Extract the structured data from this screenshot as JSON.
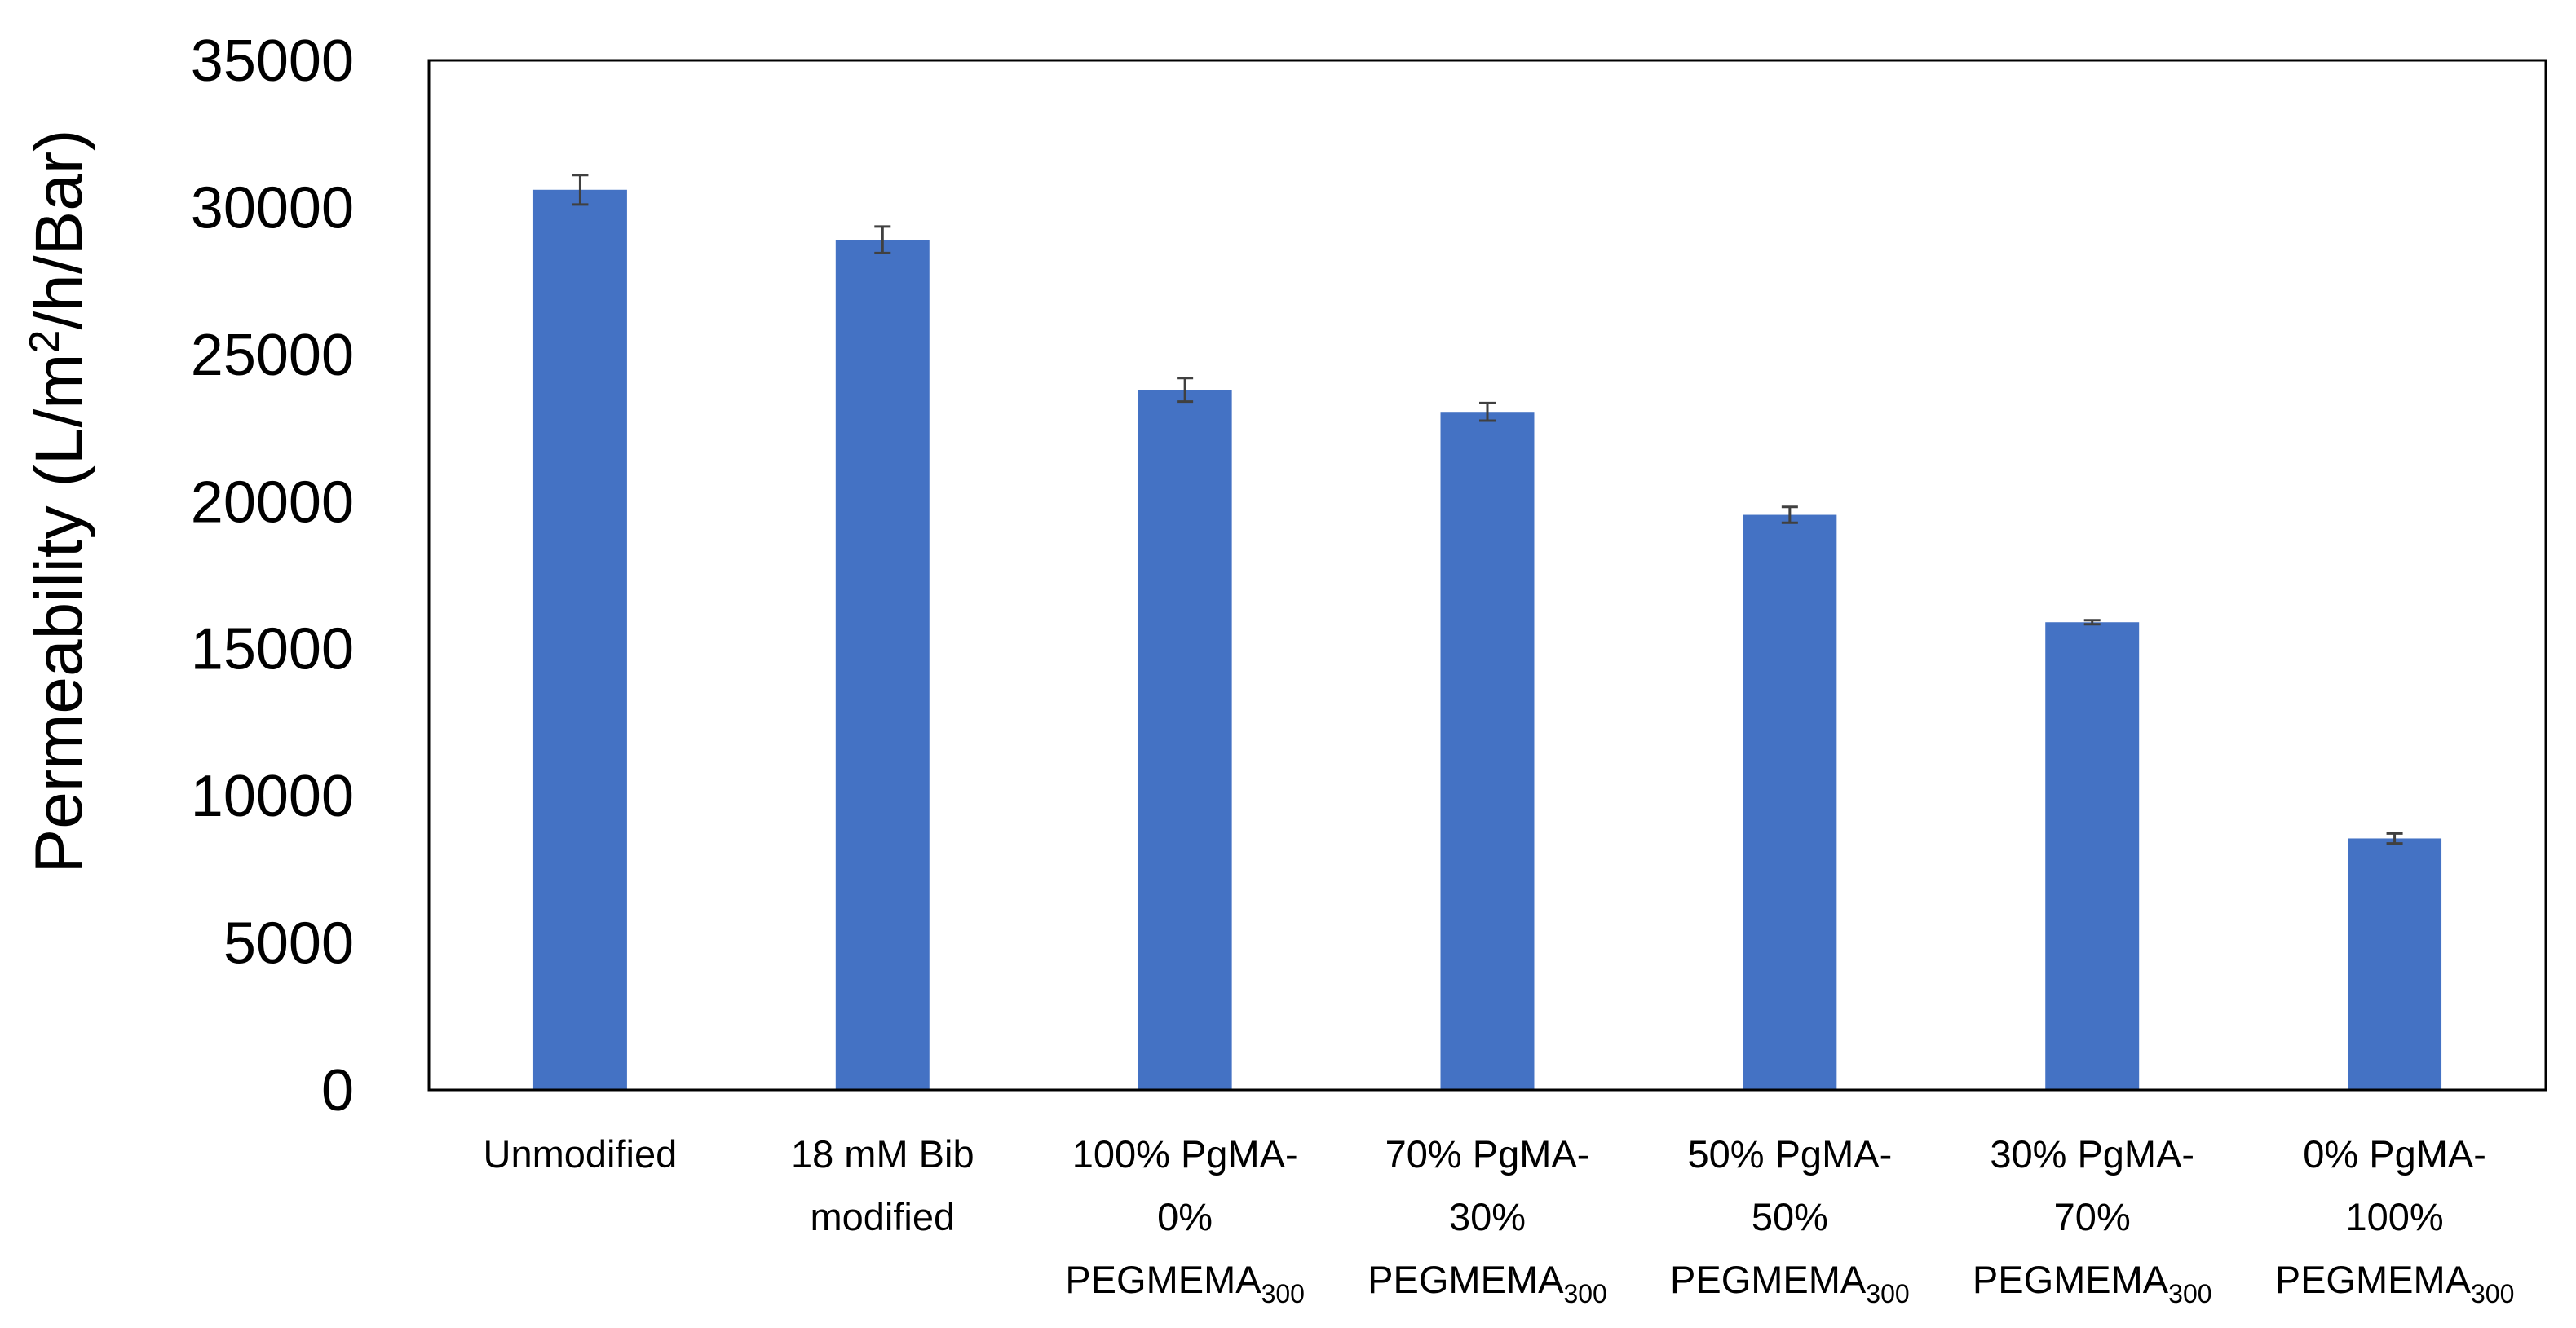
{
  "chart_data": {
    "type": "bar",
    "title": "",
    "xlabel": "",
    "ylabel": {
      "pre": "Permeability (L/m",
      "sup": "2",
      "post": "/h/Bar)"
    },
    "ylim": [
      0,
      35000
    ],
    "yticks": [
      "0",
      "5000",
      "10000",
      "15000",
      "20000",
      "25000",
      "30000",
      "35000"
    ],
    "grid": false,
    "legend": "none",
    "bar_color": "#4472C4",
    "errorbar_color": "#404040",
    "categories": [
      [
        {
          "text": "Unmodified"
        }
      ],
      [
        {
          "text": "18 mM Bib"
        },
        {
          "text": "modified"
        }
      ],
      [
        {
          "text": "100% PgMA-"
        },
        {
          "text": "0%"
        },
        {
          "text": "PEGMEMA",
          "sub": "300"
        }
      ],
      [
        {
          "text": "70% PgMA-"
        },
        {
          "text": "30%"
        },
        {
          "text": "PEGMEMA",
          "sub": "300"
        }
      ],
      [
        {
          "text": "50% PgMA-"
        },
        {
          "text": "50%"
        },
        {
          "text": "PEGMEMA",
          "sub": "300"
        }
      ],
      [
        {
          "text": "30% PgMA-"
        },
        {
          "text": "70%"
        },
        {
          "text": "PEGMEMA",
          "sub": "300"
        }
      ],
      [
        {
          "text": "0% PgMA-"
        },
        {
          "text": "100%"
        },
        {
          "text": "PEGMEMA",
          "sub": "300"
        }
      ]
    ],
    "values": [
      30600,
      28900,
      23800,
      23050,
      19550,
      15900,
      8550
    ],
    "errors": [
      500,
      450,
      400,
      300,
      270,
      70,
      170
    ]
  }
}
